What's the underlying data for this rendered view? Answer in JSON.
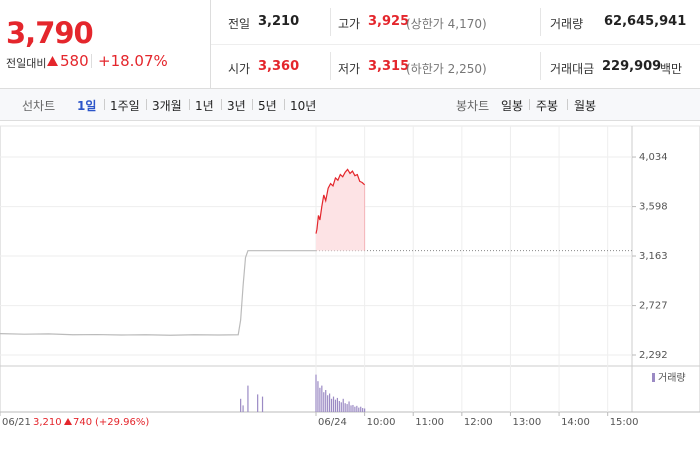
{
  "header": {
    "price": "3,790",
    "change_label": "전일대비",
    "change": "580",
    "change_pct": "+18.07%"
  },
  "stats": [
    [
      {
        "label": "전일",
        "value": "3,210"
      },
      {
        "label": "고가",
        "value": "3,925",
        "note": "(상한가 4,170)"
      },
      {
        "label": "거래량",
        "value": "62,645,941"
      }
    ],
    [
      {
        "label": "시가",
        "value": "3,360"
      },
      {
        "label": "저가",
        "value": "3,315",
        "note": "(하한가 2,250)"
      },
      {
        "label": "거래대금",
        "value": "229,909",
        "unit": "백만"
      }
    ]
  ],
  "tabs": {
    "line_label": "선차트",
    "line": [
      "1일",
      "1주일",
      "3개월",
      "1년",
      "3년",
      "5년",
      "10년"
    ],
    "candle_label": "봉차트",
    "candle": [
      "일봉",
      "주봉",
      "월봉"
    ]
  },
  "chart_data": {
    "type": "line",
    "xlim": [
      0,
      13
    ],
    "ylim": [
      2204,
      4184
    ],
    "yticks": [
      {
        "value": 4034,
        "label": "4,034"
      },
      {
        "value": 3598,
        "label": "3,598"
      },
      {
        "value": 3163,
        "label": "3,163"
      },
      {
        "value": 2727,
        "label": "2,727"
      },
      {
        "value": 2292,
        "label": "2,292"
      }
    ],
    "xticks": [
      {
        "value": 0,
        "label": "06/21"
      },
      {
        "value": 6.5,
        "label": "06/24"
      },
      {
        "value": 7.5,
        "label": "10:00"
      },
      {
        "value": 8.5,
        "label": "11:00"
      },
      {
        "value": 9.5,
        "label": "12:00"
      },
      {
        "value": 10.5,
        "label": "13:00"
      },
      {
        "value": 11.5,
        "label": "14:00"
      },
      {
        "value": 12.5,
        "label": "15:00"
      }
    ],
    "grid": true,
    "prev_close": 3210,
    "annotation": {
      "prev": "3,210",
      "change": "740",
      "pct": "(+29.96%)"
    },
    "series": [
      {
        "color": "#bbbbbb",
        "x": [
          0,
          0.5,
          1,
          1.5,
          2,
          2.5,
          3,
          3.5,
          4,
          4.5,
          4.9,
          4.95,
          5.0,
          5.05,
          5.1,
          6.5
        ],
        "values": [
          2480,
          2475,
          2478,
          2470,
          2472,
          2468,
          2470,
          2466,
          2470,
          2468,
          2470,
          2600,
          2900,
          3150,
          3210,
          3210
        ]
      },
      {
        "color": "#e4262c",
        "fill": "#fde3e5",
        "x": [
          6.5,
          6.52,
          6.55,
          6.58,
          6.62,
          6.66,
          6.7,
          6.75,
          6.8,
          6.85,
          6.9,
          6.95,
          7.0,
          7.05,
          7.1,
          7.15,
          7.2,
          7.25,
          7.3,
          7.35,
          7.4,
          7.45,
          7.5
        ],
        "values": [
          3360,
          3400,
          3520,
          3480,
          3600,
          3700,
          3650,
          3760,
          3800,
          3780,
          3850,
          3830,
          3880,
          3860,
          3900,
          3925,
          3890,
          3910,
          3870,
          3880,
          3820,
          3810,
          3790
        ]
      }
    ],
    "volume": {
      "name": "거래량",
      "color": "#9b8ac4",
      "vlim": [
        0,
        100
      ],
      "x": [
        4.95,
        5.0,
        5.1,
        5.3,
        5.4,
        6.5,
        6.54,
        6.58,
        6.62,
        6.66,
        6.7,
        6.74,
        6.78,
        6.82,
        6.86,
        6.9,
        6.94,
        6.98,
        7.02,
        7.06,
        7.1,
        7.14,
        7.18,
        7.22,
        7.26,
        7.3,
        7.34,
        7.38,
        7.42,
        7.46,
        7.5
      ],
      "values": [
        30,
        15,
        60,
        40,
        35,
        85,
        70,
        55,
        60,
        45,
        50,
        38,
        42,
        30,
        35,
        28,
        32,
        25,
        22,
        30,
        20,
        18,
        24,
        15,
        16,
        12,
        14,
        10,
        12,
        9,
        8
      ]
    }
  }
}
